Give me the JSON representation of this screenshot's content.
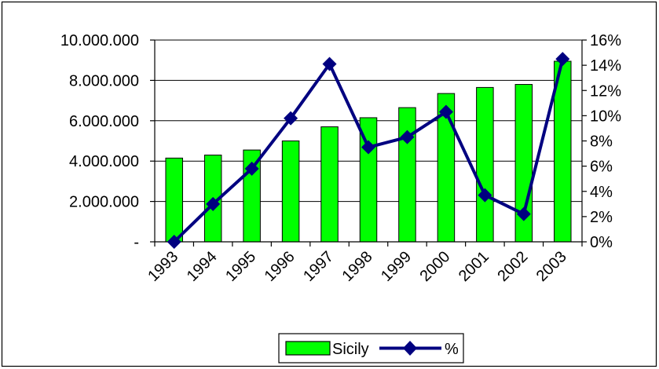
{
  "chart_data": {
    "type": "bar",
    "categories": [
      "1993",
      "1994",
      "1995",
      "1996",
      "1997",
      "1998",
      "1999",
      "2000",
      "2001",
      "2002",
      "2003"
    ],
    "series": [
      {
        "name": "Sicily",
        "type": "bar",
        "axis": "left",
        "color": "#00ff00",
        "values": [
          4150000,
          4300000,
          4550000,
          5000000,
          5700000,
          6150000,
          6650000,
          7350000,
          7650000,
          7800000,
          8950000
        ]
      },
      {
        "name": "%",
        "type": "line",
        "axis": "right",
        "color": "#000080",
        "marker": "diamond",
        "values": [
          0.0,
          3.0,
          5.8,
          9.8,
          14.1,
          7.5,
          8.3,
          10.3,
          3.7,
          2.2,
          14.5
        ]
      }
    ],
    "y_left": {
      "min": 0,
      "max": 10000000,
      "ticks": [
        0,
        2000000,
        4000000,
        6000000,
        8000000,
        10000000
      ],
      "tick_labels": [
        "-",
        "2.000.000",
        "4.000.000",
        "6.000.000",
        "8.000.000",
        "10.000.000"
      ]
    },
    "y_right": {
      "min": 0,
      "max": 16,
      "ticks": [
        0,
        2,
        4,
        6,
        8,
        10,
        12,
        14,
        16
      ],
      "tick_labels": [
        "0%",
        "2%",
        "4%",
        "6%",
        "8%",
        "10%",
        "12%",
        "14%",
        "16%"
      ]
    },
    "grid": "horizontal",
    "legend": {
      "position": "bottom-center",
      "entries": [
        "Sicily",
        "%"
      ]
    }
  }
}
